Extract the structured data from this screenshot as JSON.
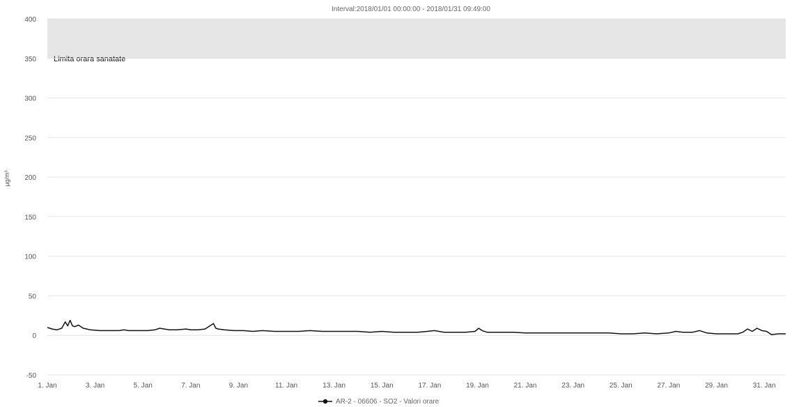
{
  "chart_data": {
    "type": "line",
    "title": "Interval:2018/01/01 00:00:00 - 2018/01/31 09:49:00",
    "ylabel": "µg/m³",
    "xlabel": "",
    "ylim": [
      -50,
      400
    ],
    "yticks": [
      -50,
      0,
      50,
      100,
      150,
      200,
      250,
      300,
      350,
      400
    ],
    "xlim": [
      1,
      31.9
    ],
    "xticks": [
      {
        "day": 1,
        "label": "1. Jan"
      },
      {
        "day": 3,
        "label": "3. Jan"
      },
      {
        "day": 5,
        "label": "5. Jan"
      },
      {
        "day": 7,
        "label": "7. Jan"
      },
      {
        "day": 9,
        "label": "9. Jan"
      },
      {
        "day": 11,
        "label": "11. Jan"
      },
      {
        "day": 13,
        "label": "13. Jan"
      },
      {
        "day": 15,
        "label": "15. Jan"
      },
      {
        "day": 17,
        "label": "17. Jan"
      },
      {
        "day": 19,
        "label": "19. Jan"
      },
      {
        "day": 21,
        "label": "21. Jan"
      },
      {
        "day": 23,
        "label": "23. Jan"
      },
      {
        "day": 25,
        "label": "25. Jan"
      },
      {
        "day": 27,
        "label": "27. Jan"
      },
      {
        "day": 29,
        "label": "29. Jan"
      },
      {
        "day": 31,
        "label": "31. Jan"
      }
    ],
    "grid": true,
    "legend_position": "bottom-center",
    "colors": {
      "series": "#111111",
      "band": "#e6e6e6",
      "grid": "#e4e4e4"
    },
    "plot_band": {
      "from": 350,
      "to": 400,
      "label": "Limita orara sanatate"
    },
    "series": [
      {
        "name": "AR-2 - 06606 - SO2 - Valori orare",
        "x": [
          1.0,
          1.2,
          1.4,
          1.6,
          1.75,
          1.85,
          1.95,
          2.05,
          2.15,
          2.3,
          2.5,
          2.8,
          3.2,
          3.6,
          4.0,
          4.2,
          4.4,
          4.8,
          5.2,
          5.5,
          5.7,
          5.9,
          6.1,
          6.4,
          6.8,
          7.0,
          7.3,
          7.6,
          7.95,
          8.05,
          8.15,
          8.4,
          8.8,
          9.2,
          9.6,
          10.0,
          10.5,
          11.0,
          11.5,
          12.0,
          12.5,
          13.0,
          13.5,
          14.0,
          14.5,
          15.0,
          15.5,
          16.0,
          16.5,
          16.9,
          17.2,
          17.6,
          18.0,
          18.5,
          18.9,
          19.05,
          19.2,
          19.4,
          19.8,
          20.5,
          21.0,
          21.5,
          22.0,
          22.5,
          23.0,
          23.5,
          24.0,
          24.5,
          25.0,
          25.5,
          26.0,
          26.5,
          27.0,
          27.3,
          27.6,
          28.0,
          28.3,
          28.6,
          29.0,
          29.5,
          29.9,
          30.1,
          30.3,
          30.5,
          30.7,
          30.9,
          31.1,
          31.3,
          31.6,
          31.9
        ],
        "values": [
          10,
          8,
          7,
          9,
          17,
          12,
          19,
          12,
          11,
          13,
          9,
          7,
          6,
          6,
          6,
          7,
          6,
          6,
          6,
          7,
          9,
          8,
          7,
          7,
          8,
          7,
          7,
          8,
          15,
          9,
          8,
          7,
          6,
          6,
          5,
          6,
          5,
          5,
          5,
          6,
          5,
          5,
          5,
          5,
          4,
          5,
          4,
          4,
          4,
          5,
          6,
          4,
          4,
          4,
          5,
          9,
          6,
          4,
          4,
          4,
          3,
          3,
          3,
          3,
          3,
          3,
          3,
          3,
          2,
          2,
          3,
          2,
          3,
          5,
          4,
          4,
          6,
          3,
          2,
          2,
          2,
          4,
          8,
          5,
          9,
          6,
          5,
          1,
          2,
          2
        ]
      }
    ]
  }
}
